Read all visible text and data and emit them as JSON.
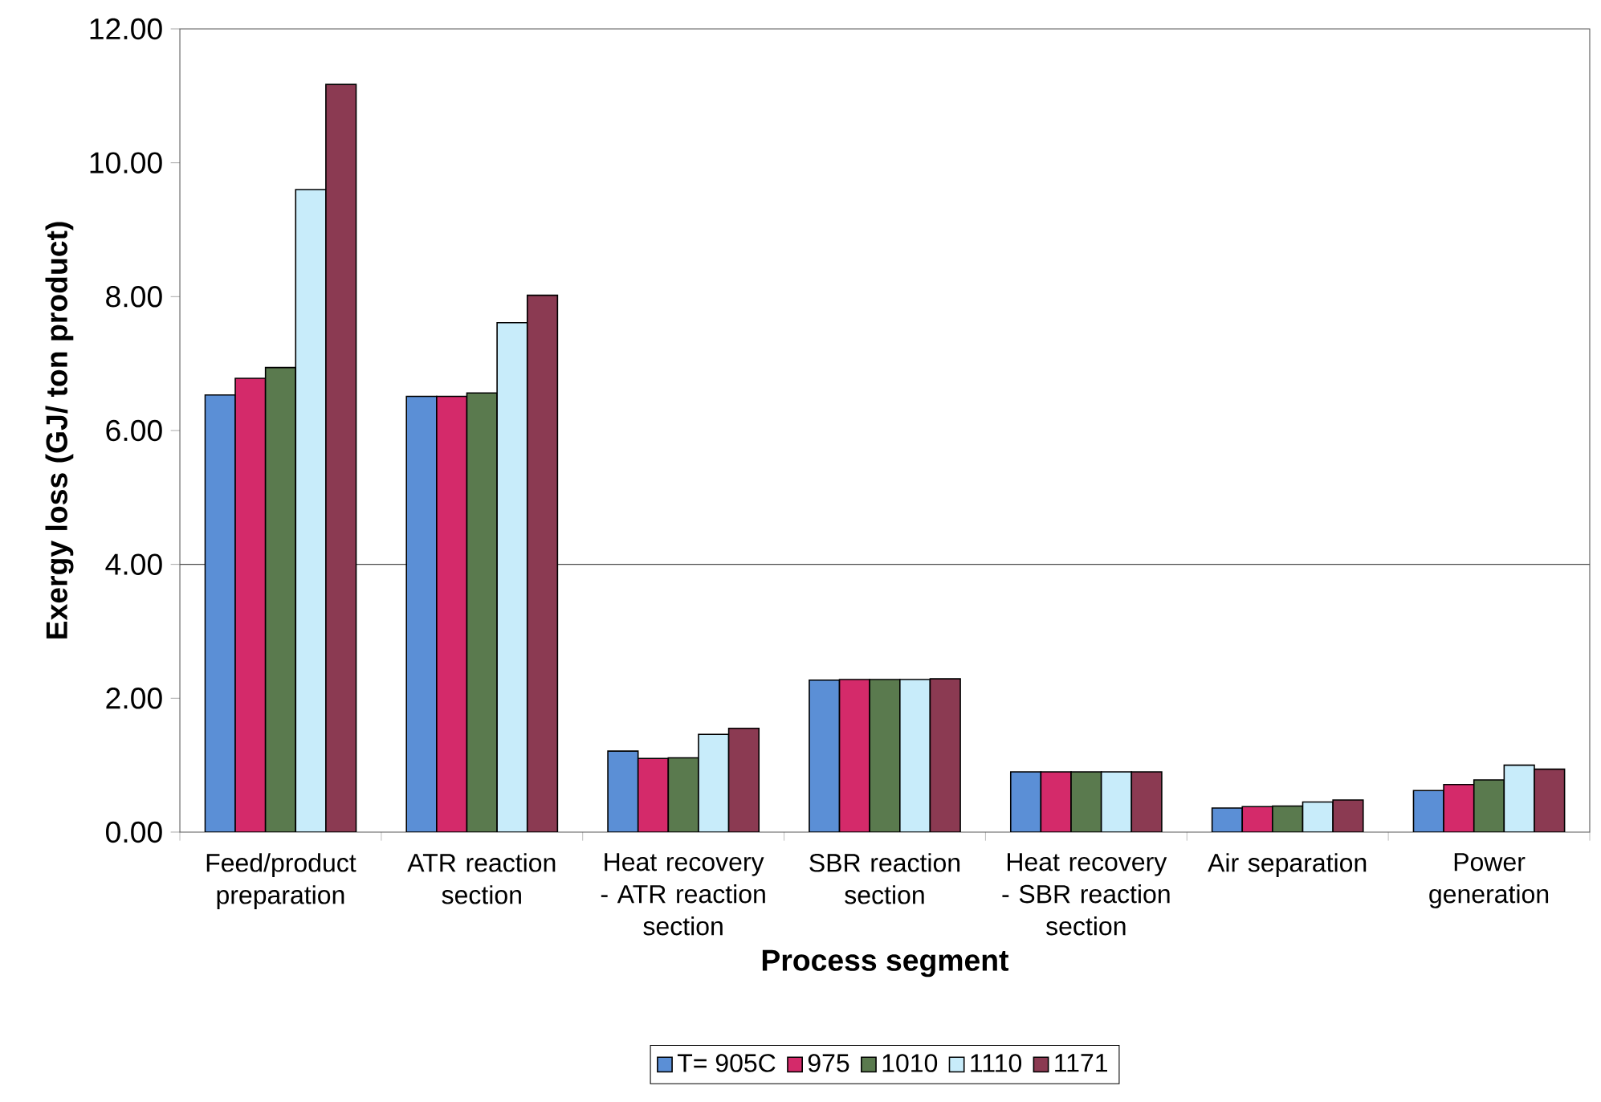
{
  "chart_data": {
    "type": "bar",
    "xlabel": "Process segment",
    "ylabel": "Exergy loss (GJ/ ton product)",
    "categories": [
      "Feed/product preparation",
      "ATR reaction section",
      "Heat recovery - ATR reaction section",
      "SBR reaction section",
      "Heat recovery - SBR reaction section",
      "Air separation",
      "Power generation"
    ],
    "series": [
      {
        "name": "T= 905C",
        "color": "#5b8fd6",
        "values": [
          6.53,
          6.51,
          1.21,
          2.27,
          0.9,
          0.36,
          0.62
        ]
      },
      {
        "name": "975",
        "color": "#d42a6a",
        "values": [
          6.78,
          6.51,
          1.1,
          2.28,
          0.9,
          0.38,
          0.71
        ]
      },
      {
        "name": "1010",
        "color": "#5a7a4e",
        "values": [
          6.94,
          6.56,
          1.11,
          2.28,
          0.9,
          0.39,
          0.78
        ]
      },
      {
        "name": "1110",
        "color": "#c8ecfa",
        "values": [
          9.6,
          7.61,
          1.46,
          2.28,
          0.9,
          0.45,
          1.0
        ]
      },
      {
        "name": "1171",
        "color": "#8b3a52",
        "values": [
          11.17,
          8.02,
          1.55,
          2.29,
          0.9,
          0.48,
          0.94
        ]
      }
    ],
    "ylim": [
      0,
      12
    ],
    "yticks": [
      {
        "value": 0,
        "label": "0.00"
      },
      {
        "value": 2,
        "label": "2.00"
      },
      {
        "value": 4,
        "label": "4.00"
      },
      {
        "value": 6,
        "label": "6.00"
      },
      {
        "value": 8,
        "label": "8.00"
      },
      {
        "value": 10,
        "label": "10.00"
      },
      {
        "value": 12,
        "label": "12.00"
      }
    ],
    "ref_lines": [
      {
        "axis": "y",
        "value": 4,
        "label": null
      }
    ],
    "legend": "bottom"
  }
}
